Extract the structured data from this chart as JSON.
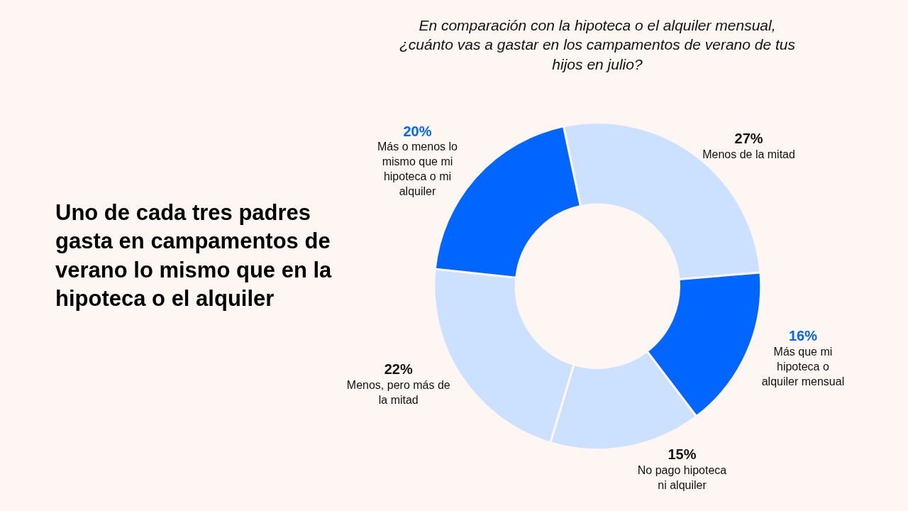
{
  "chart_data": {
    "type": "donut",
    "title": "Uno de cada tres padres gasta en campamentos de verano lo mismo que en la hipoteca o el alquiler",
    "subtitle": "En comparación con la hipoteca o el alquiler mensual, ¿cuánto vas a gastar en los campamentos de verano de tus hijos en julio?",
    "categories": [
      "Menos de la mitad",
      "Más que mi hipoteca o alquiler mensual",
      "No pago hipoteca ni alquiler",
      "Menos, pero más de la mitad",
      "Más o menos lo mismo que mi hipoteca o mi alquiler"
    ],
    "values": [
      27,
      16,
      15,
      22,
      20
    ],
    "colors": [
      "#cce0ff",
      "#0066ff",
      "#cce0ff",
      "#cce0ff",
      "#0066ff"
    ],
    "value_labels": [
      "27%",
      "16%",
      "15%",
      "22%",
      "20%"
    ]
  }
}
